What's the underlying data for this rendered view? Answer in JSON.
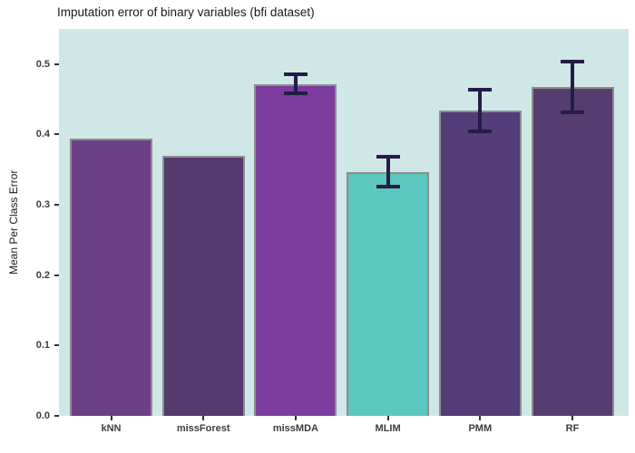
{
  "title": "Imputation error of binary variables (bfi dataset)",
  "chart_data": {
    "type": "bar",
    "title": "Imputation error of binary variables (bfi dataset)",
    "xlabel": "",
    "ylabel": "Mean Per Class Error",
    "categories": [
      "kNN",
      "missForest",
      "missMDA",
      "MLIM",
      "PMM",
      "RF"
    ],
    "values": [
      0.394,
      0.37,
      0.471,
      0.347,
      0.434,
      0.468
    ],
    "error_bars": [
      null,
      null,
      {
        "low": 0.459,
        "high": 0.486
      },
      {
        "low": 0.326,
        "high": 0.368
      },
      {
        "low": 0.404,
        "high": 0.464
      },
      {
        "low": 0.431,
        "high": 0.504
      }
    ],
    "bar_colors": [
      "#6a4187",
      "#543a6d",
      "#7b3c9e",
      "#5cc7be",
      "#533c78",
      "#563d6f"
    ],
    "bar_outline_color": "#8e8e8e",
    "error_bar_color": "#241d45",
    "panel_background": "#d0e7e8",
    "tick_color": "#333333",
    "yticks": [
      "0.0",
      "0.1",
      "0.2",
      "0.3",
      "0.4",
      "0.5"
    ],
    "ylim": [
      0,
      0.55
    ],
    "grid": false,
    "legend": "none"
  }
}
